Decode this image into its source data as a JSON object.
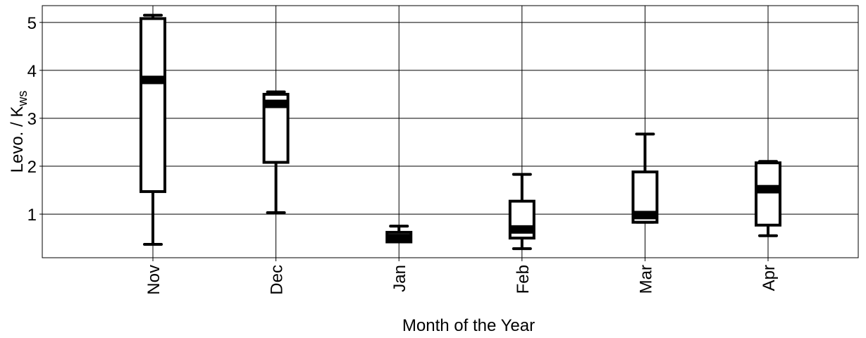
{
  "chart_data": {
    "type": "box",
    "xlabel": "Month of the Year",
    "ylabel": "Levo. / K",
    "ylabel_subscript": "ws",
    "categories": [
      "Nov",
      "Dec",
      "Jan",
      "Feb",
      "Mar",
      "Apr"
    ],
    "min": [
      0.37,
      1.03,
      0.42,
      0.28,
      0.83,
      0.55
    ],
    "q1": [
      1.47,
      2.08,
      0.42,
      0.5,
      0.83,
      0.77
    ],
    "median": [
      3.8,
      3.3,
      0.5,
      0.68,
      0.98,
      1.52
    ],
    "q3": [
      5.08,
      3.5,
      0.62,
      1.27,
      1.88,
      2.07
    ],
    "max": [
      5.15,
      3.55,
      0.75,
      1.83,
      2.67,
      2.1
    ],
    "color": "#000000",
    "ylim": [
      0.09,
      5.35
    ],
    "yticks": [
      1,
      2,
      3,
      4,
      5
    ],
    "grid": true
  }
}
